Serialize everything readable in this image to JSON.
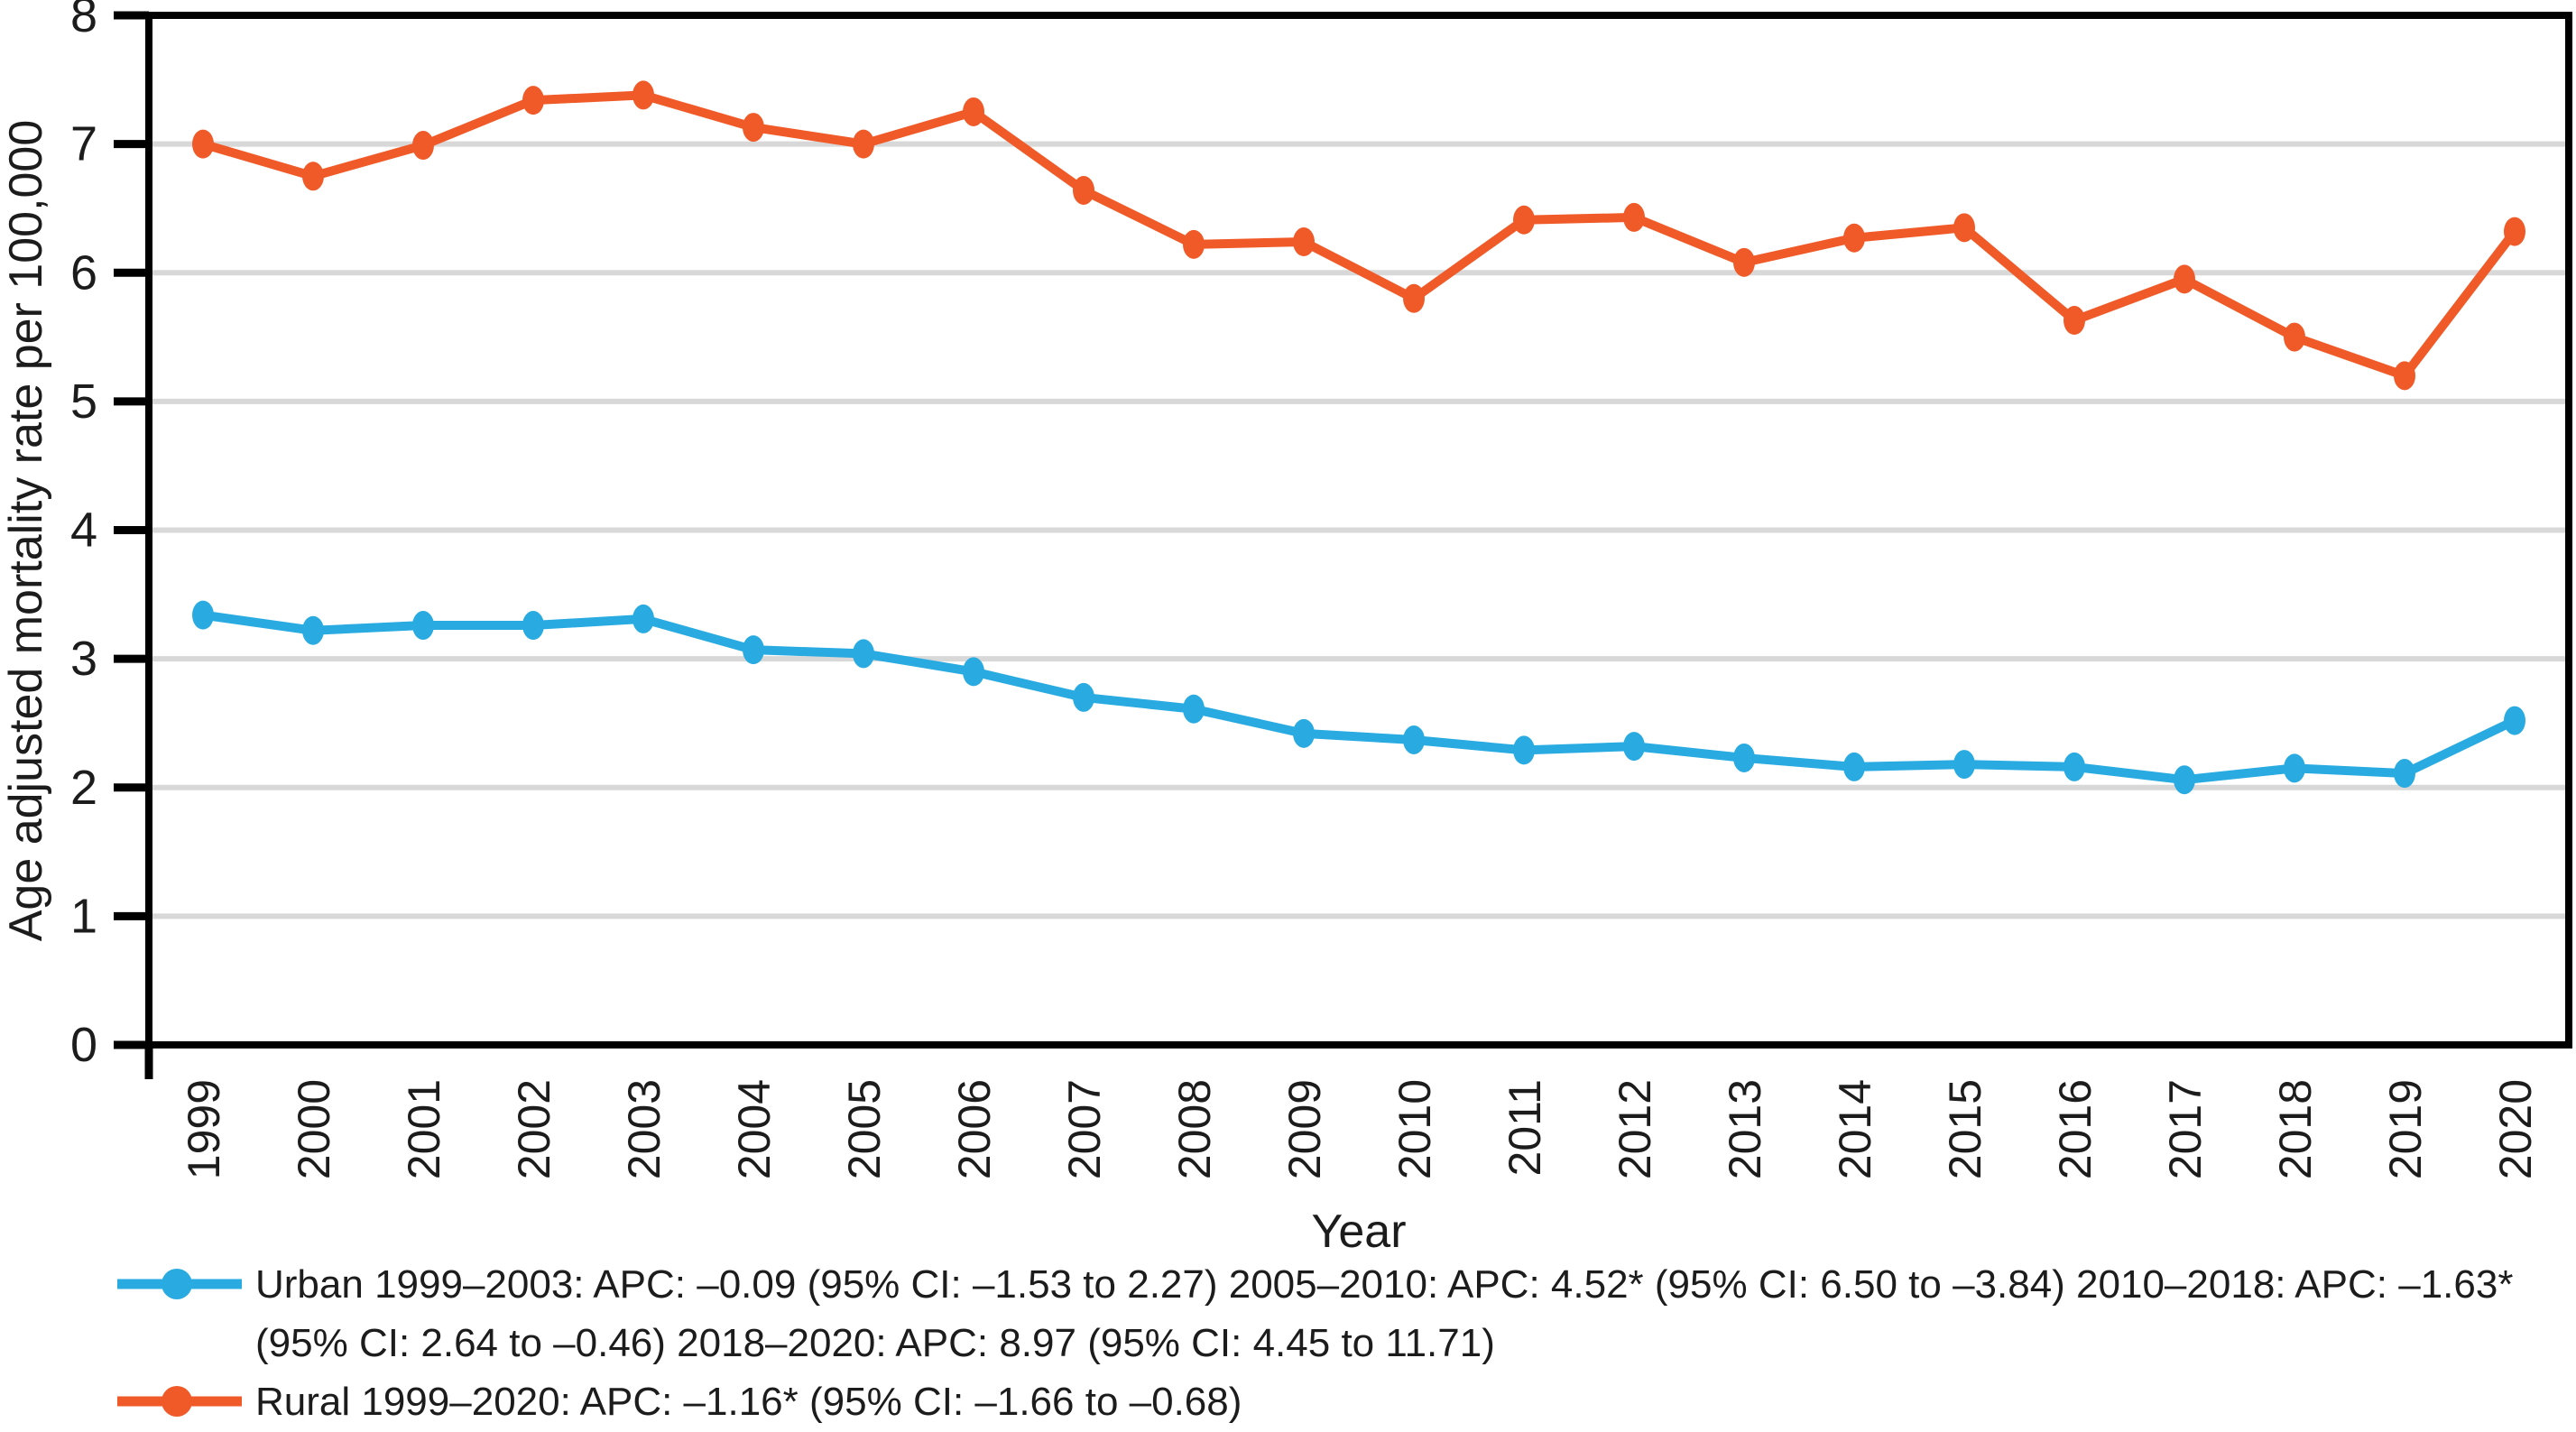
{
  "figure": {
    "background": "#ffffff",
    "text_color": "#1c1c1c",
    "grid_color": "#d8d8d8",
    "axis_color": "#000000"
  },
  "chart_data": {
    "type": "line",
    "xlabel": "Year",
    "ylabel": "Age adjusted mortality rate per 100,000",
    "ylim": [
      0,
      8
    ],
    "yticks": [
      0,
      1,
      2,
      3,
      4,
      5,
      6,
      7,
      8
    ],
    "grid": "horizontal",
    "legend_position": "bottom-left",
    "categories": [
      "1999",
      "2000",
      "2001",
      "2002",
      "2003",
      "2004",
      "2005",
      "2006",
      "2007",
      "2008",
      "2009",
      "2010",
      "2011",
      "2012",
      "2013",
      "2014",
      "2015",
      "2016",
      "2017",
      "2018",
      "2019",
      "2020"
    ],
    "series": [
      {
        "name": "Urban",
        "color": "#29abe2",
        "values": [
          3.34,
          3.22,
          3.26,
          3.26,
          3.31,
          3.07,
          3.04,
          2.9,
          2.7,
          2.61,
          2.42,
          2.37,
          2.29,
          2.32,
          2.23,
          2.16,
          2.18,
          2.16,
          2.06,
          2.15,
          2.11,
          2.52
        ]
      },
      {
        "name": "Rural",
        "color": "#f05a28",
        "values": [
          7.0,
          6.75,
          6.99,
          7.34,
          7.38,
          7.13,
          7.0,
          7.25,
          6.64,
          6.22,
          6.24,
          5.8,
          6.41,
          6.43,
          6.08,
          6.27,
          6.35,
          5.63,
          5.95,
          5.5,
          5.2,
          6.32
        ]
      }
    ],
    "legend": {
      "items": [
        {
          "series": "Urban",
          "color": "#29abe2",
          "lines": [
            "Urban 1999–2003: APC: –0.09 (95% CI: –1.53 to 2.27) 2005–2010: APC: 4.52* (95% CI: 6.50 to –3.84) 2010–2018: APC: –1.63*",
            "(95% CI: 2.64 to –0.46) 2018–2020: APC: 8.97 (95% CI: 4.45 to 11.71)"
          ]
        },
        {
          "series": "Rural",
          "color": "#f05a28",
          "lines": [
            "Rural 1999–2020: APC: –1.16* (95% CI: –1.66 to –0.68)"
          ]
        }
      ]
    }
  }
}
